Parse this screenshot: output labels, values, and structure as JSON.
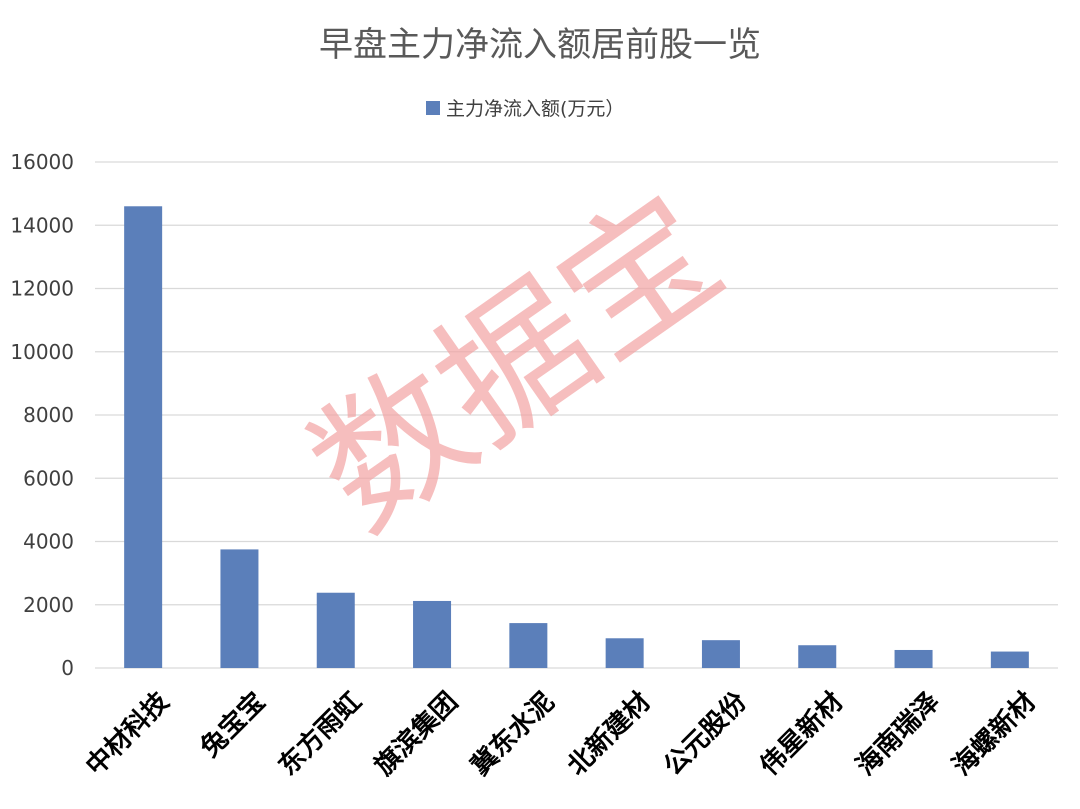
{
  "chart_data": {
    "type": "bar",
    "title": "早盘主力净流入额居前股一览",
    "legend": {
      "position": "top",
      "entries": [
        "主力净流入额(万元）"
      ]
    },
    "categories": [
      "中材科技",
      "兔宝宝",
      "东方雨虹",
      "旗滨集团",
      "冀东水泥",
      "北新建材",
      "公元股份",
      "伟星新材",
      "海南瑞泽",
      "海螺新材"
    ],
    "series": [
      {
        "name": "主力净流入额(万元）",
        "values": [
          14600,
          3750,
          2380,
          2120,
          1420,
          940,
          880,
          720,
          570,
          520
        ],
        "color": "#5b7fba"
      }
    ],
    "y_ticks": [
      "0",
      "2000",
      "4000",
      "6000",
      "8000",
      "10000",
      "12000",
      "14000",
      "16000"
    ],
    "ylim": [
      0,
      16000
    ],
    "grid": true,
    "xlabel": "",
    "ylabel": ""
  },
  "watermark": {
    "text": "数据宝",
    "color": "#f2a3a3"
  },
  "colors": {
    "grid": "#d9d9d9",
    "title": "#595959",
    "axis_text": "#404040",
    "category_text": "#000000"
  }
}
